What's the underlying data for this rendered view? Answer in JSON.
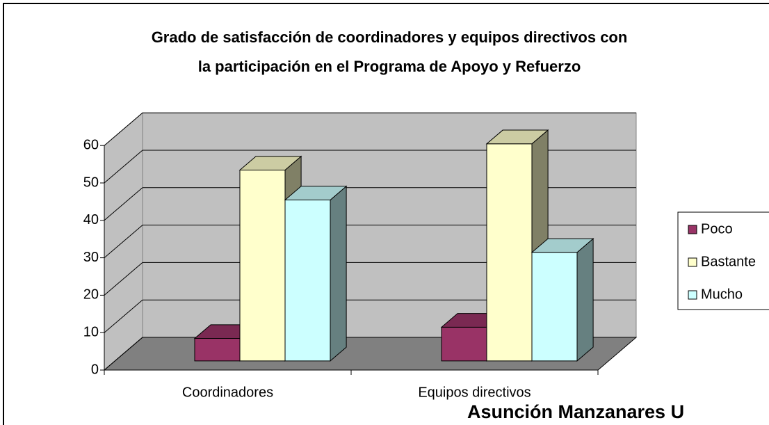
{
  "chart_data": {
    "type": "bar3d",
    "title": [
      "Grado de satisfacción de coordinadores y equipos directivos con",
      "la participación en el Programa de Apoyo y Refuerzo"
    ],
    "categories": [
      "Coordinadores",
      "Equipos directivos"
    ],
    "series": [
      {
        "name": "Poco",
        "color": "#993366",
        "values": [
          6,
          9
        ]
      },
      {
        "name": "Bastante",
        "color": "#ffffcc",
        "values": [
          51,
          58
        ]
      },
      {
        "name": "Mucho",
        "color": "#ccffff",
        "values": [
          43,
          29
        ]
      }
    ],
    "ylim": [
      0,
      60
    ],
    "yticks": [
      0,
      10,
      20,
      30,
      40,
      50,
      60
    ],
    "grid": true,
    "legend": "right",
    "footer": "Asunción Manzanares U"
  }
}
